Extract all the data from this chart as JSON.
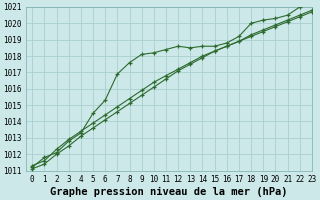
{
  "title": "Graphe pression niveau de la mer (hPa)",
  "background_color": "#cce8e8",
  "grid_color": "#aacfcf",
  "line_color": "#2d6a2d",
  "x_values": [
    0,
    1,
    2,
    3,
    4,
    5,
    6,
    7,
    8,
    9,
    10,
    11,
    12,
    13,
    14,
    15,
    16,
    17,
    18,
    19,
    20,
    21,
    22,
    23
  ],
  "series1": [
    1011.2,
    1011.8,
    1012.1,
    1012.8,
    1013.3,
    1014.5,
    1015.3,
    1016.9,
    1017.6,
    1018.1,
    1018.2,
    1018.4,
    1018.6,
    1018.5,
    1018.6,
    1018.6,
    1018.8,
    1019.2,
    1020.0,
    1020.2,
    1020.3,
    1020.5,
    1021.0,
    1021.2
  ],
  "series2": [
    1011.3,
    1011.6,
    1012.3,
    1012.9,
    1013.4,
    1013.9,
    1014.4,
    1014.9,
    1015.4,
    1015.9,
    1016.4,
    1016.8,
    1017.2,
    1017.6,
    1018.0,
    1018.3,
    1018.6,
    1018.9,
    1019.3,
    1019.6,
    1019.9,
    1020.2,
    1020.5,
    1020.8
  ],
  "series3": [
    1011.1,
    1011.4,
    1012.0,
    1012.5,
    1013.1,
    1013.6,
    1014.1,
    1014.6,
    1015.1,
    1015.6,
    1016.1,
    1016.6,
    1017.1,
    1017.5,
    1017.9,
    1018.3,
    1018.6,
    1018.9,
    1019.2,
    1019.5,
    1019.8,
    1020.1,
    1020.4,
    1020.7
  ],
  "ylim": [
    1011,
    1021
  ],
  "yticks": [
    1011,
    1012,
    1013,
    1014,
    1015,
    1016,
    1017,
    1018,
    1019,
    1020,
    1021
  ],
  "xlim": [
    -0.5,
    23
  ],
  "xticks": [
    0,
    1,
    2,
    3,
    4,
    5,
    6,
    7,
    8,
    9,
    10,
    11,
    12,
    13,
    14,
    15,
    16,
    17,
    18,
    19,
    20,
    21,
    22,
    23
  ],
  "title_fontsize": 7.5,
  "tick_fontsize": 5.5
}
